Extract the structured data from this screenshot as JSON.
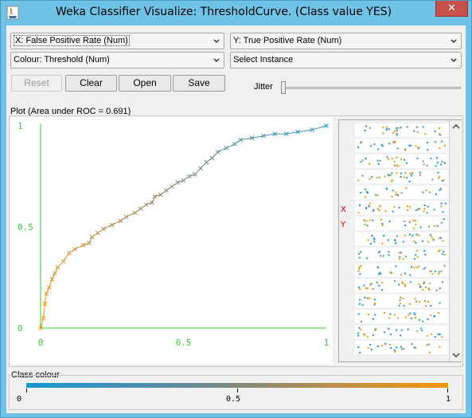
{
  "window": {
    "title": "Weka Classifier Visualize: ThresholdCurve. (Class value YES)",
    "close_glyph": "✕"
  },
  "controls": {
    "x_axis": "X: False Positive Rate (Num)",
    "y_axis": "Y: True Positive Rate (Num)",
    "colour": "Colour: Threshold (Num)",
    "instance": "Select Instance",
    "reset": "Reset",
    "clear": "Clear",
    "open": "Open",
    "save": "Save",
    "jitter": "Jitter",
    "jitter_value": 0
  },
  "plot": {
    "label": "Plot (Area under ROC = 0.691)",
    "x_ticks": [
      "0",
      "0.5",
      "1"
    ],
    "y_ticks": [
      "0",
      "0.5",
      "1"
    ],
    "axis_color": "#33cc33",
    "x_marker": "X",
    "y_marker": "Y",
    "marker_color": "#cc0000"
  },
  "class_colour": {
    "label": "Class colour",
    "ticks": [
      "0",
      "0.5",
      "1"
    ],
    "colors": [
      "#1497d3",
      "#8c8a6f",
      "#f39600"
    ]
  },
  "chart_data": {
    "type": "line",
    "title": "",
    "xlabel": "False Positive Rate",
    "ylabel": "True Positive Rate",
    "xlim": [
      0,
      1
    ],
    "ylim": [
      0,
      1
    ],
    "colour_by": "Threshold",
    "grid": false,
    "points": [
      [
        0.0,
        0.0,
        0.99
      ],
      [
        0.01,
        0.05,
        0.97
      ],
      [
        0.015,
        0.12,
        0.95
      ],
      [
        0.02,
        0.17,
        0.93
      ],
      [
        0.03,
        0.2,
        0.91
      ],
      [
        0.04,
        0.24,
        0.89
      ],
      [
        0.05,
        0.27,
        0.87
      ],
      [
        0.06,
        0.3,
        0.85
      ],
      [
        0.08,
        0.33,
        0.83
      ],
      [
        0.1,
        0.37,
        0.81
      ],
      [
        0.12,
        0.39,
        0.79
      ],
      [
        0.15,
        0.41,
        0.77
      ],
      [
        0.17,
        0.42,
        0.75
      ],
      [
        0.18,
        0.45,
        0.73
      ],
      [
        0.2,
        0.47,
        0.71
      ],
      [
        0.22,
        0.49,
        0.69
      ],
      [
        0.25,
        0.51,
        0.67
      ],
      [
        0.28,
        0.53,
        0.65
      ],
      [
        0.3,
        0.55,
        0.63
      ],
      [
        0.33,
        0.57,
        0.61
      ],
      [
        0.35,
        0.59,
        0.59
      ],
      [
        0.37,
        0.61,
        0.57
      ],
      [
        0.39,
        0.62,
        0.55
      ],
      [
        0.4,
        0.65,
        0.53
      ],
      [
        0.42,
        0.66,
        0.51
      ],
      [
        0.44,
        0.68,
        0.49
      ],
      [
        0.46,
        0.7,
        0.47
      ],
      [
        0.48,
        0.72,
        0.45
      ],
      [
        0.5,
        0.73,
        0.43
      ],
      [
        0.52,
        0.75,
        0.41
      ],
      [
        0.54,
        0.76,
        0.39
      ],
      [
        0.56,
        0.79,
        0.37
      ],
      [
        0.58,
        0.82,
        0.35
      ],
      [
        0.6,
        0.84,
        0.33
      ],
      [
        0.62,
        0.87,
        0.31
      ],
      [
        0.65,
        0.89,
        0.29
      ],
      [
        0.68,
        0.91,
        0.27
      ],
      [
        0.7,
        0.93,
        0.25
      ],
      [
        0.74,
        0.94,
        0.23
      ],
      [
        0.78,
        0.95,
        0.21
      ],
      [
        0.82,
        0.96,
        0.19
      ],
      [
        0.86,
        0.96,
        0.17
      ],
      [
        0.9,
        0.97,
        0.15
      ],
      [
        0.95,
        0.98,
        0.13
      ],
      [
        1.0,
        1.0,
        0.02
      ]
    ]
  }
}
